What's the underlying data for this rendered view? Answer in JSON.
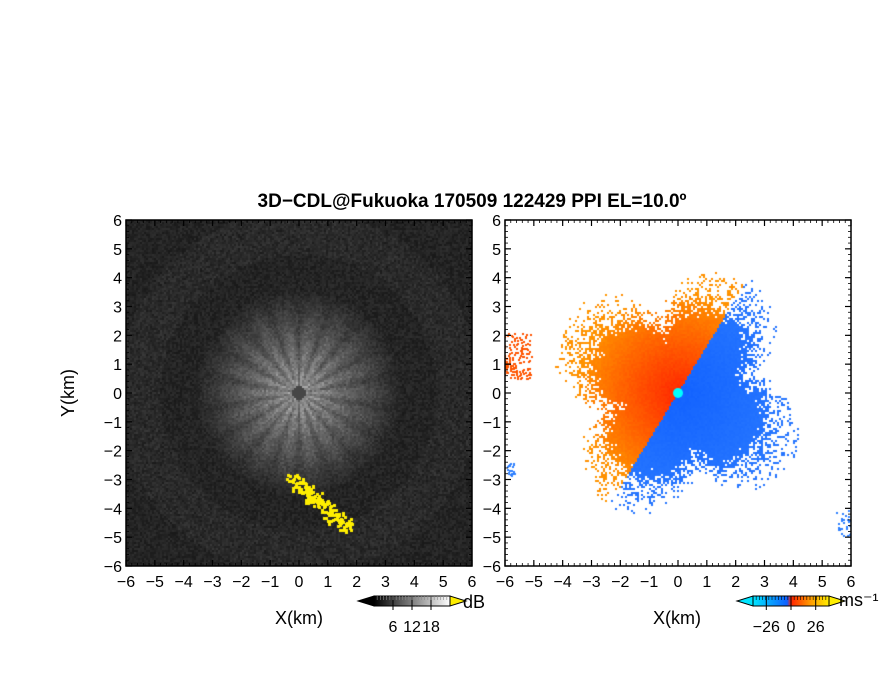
{
  "figure": {
    "title": "3D−CDL@Fukuoka 170509 122429 PPI EL=10.0º"
  },
  "chart_data": [
    {
      "type": "heatmap",
      "panel": "left",
      "quantity": "signal",
      "xlabel": "X(km)",
      "ylabel": "Y(km)",
      "xlim": [
        -6,
        6
      ],
      "ylim": [
        -6,
        6
      ],
      "x_ticks": [
        -6,
        -5,
        -4,
        -3,
        -2,
        -1,
        0,
        1,
        2,
        3,
        4,
        5,
        6
      ],
      "y_ticks": [
        -6,
        -5,
        -4,
        -3,
        -2,
        -1,
        0,
        1,
        2,
        3,
        4,
        5,
        6
      ],
      "x_tick_labels": [
        "−6",
        "−5",
        "−4",
        "−3",
        "−2",
        "−1",
        "0",
        "1",
        "2",
        "3",
        "4",
        "5",
        "6"
      ],
      "y_tick_labels": [
        "−6",
        "−5",
        "−4",
        "−3",
        "−2",
        "−1",
        "0",
        "1",
        "2",
        "3",
        "4",
        "5",
        "6"
      ],
      "colorbar": {
        "unit": "dB",
        "ticks": [
          6,
          12,
          18
        ],
        "tick_labels": [
          "6",
          "12",
          "18"
        ],
        "range": [
          0,
          24
        ],
        "colors": [
          "#000000",
          "#ffffff"
        ],
        "over_color": "#ffee00"
      },
      "highlight_region_km": {
        "x": [
          -0.6,
          1.6
        ],
        "y": [
          -4.6,
          -2.6
        ]
      }
    },
    {
      "type": "heatmap",
      "panel": "right",
      "quantity": "velocity",
      "xlabel": "X(km)",
      "xlim": [
        -6,
        6
      ],
      "ylim": [
        -6,
        6
      ],
      "x_ticks": [
        -6,
        -5,
        -4,
        -3,
        -2,
        -1,
        0,
        1,
        2,
        3,
        4,
        5,
        6
      ],
      "y_ticks": [
        -6,
        -5,
        -4,
        -3,
        -2,
        -1,
        0,
        1,
        2,
        3,
        4,
        5,
        6
      ],
      "x_tick_labels": [
        "−6",
        "−5",
        "−4",
        "−3",
        "−2",
        "−1",
        "0",
        "1",
        "2",
        "3",
        "4",
        "5",
        "6"
      ],
      "y_tick_labels": [
        "−6",
        "−5",
        "−4",
        "−3",
        "−2",
        "−1",
        "0",
        "1",
        "2",
        "3",
        "4",
        "5",
        "6"
      ],
      "colorbar": {
        "unit": "ms⁻¹",
        "ticks": [
          -26,
          0,
          26
        ],
        "tick_labels": [
          "−26",
          "0",
          "26"
        ],
        "range": [
          -40,
          40
        ],
        "colors": [
          "#00e5ff",
          "#1060ff",
          "#ff2200",
          "#ff9900",
          "#ffee00"
        ]
      },
      "center_marker": {
        "x": 0,
        "y": 0,
        "color": "#00ffff"
      }
    }
  ]
}
